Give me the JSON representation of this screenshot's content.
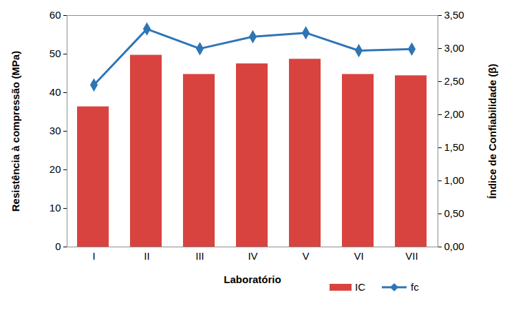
{
  "chart_data": {
    "type": "bar",
    "x_label": "Laboratório",
    "y_label": "Resistência à compressão (MPa)",
    "y2_label": "Índice de Confiabilidade (β)",
    "categories": [
      "I",
      "II",
      "III",
      "IV",
      "V",
      "VI",
      "VII"
    ],
    "series": [
      {
        "name": "IC",
        "type": "bar",
        "axis": "y2",
        "color": "#d9433f",
        "values": [
          2.12,
          2.9,
          2.61,
          2.77,
          2.84,
          2.61,
          2.59
        ]
      },
      {
        "name": "fc",
        "type": "line",
        "axis": "y",
        "color": "#2e75b6",
        "marker": "diamond",
        "values": [
          42,
          56.5,
          51.4,
          54.5,
          55.5,
          50.9,
          51.3
        ]
      }
    ],
    "ylim": [
      0,
      60
    ],
    "yticks": [
      0,
      10,
      20,
      30,
      40,
      50,
      60
    ],
    "y2lim": [
      0,
      3.5
    ],
    "y2ticks": [
      {
        "value": 0,
        "label": "0,00"
      },
      {
        "value": 0.5,
        "label": "0,50"
      },
      {
        "value": 1,
        "label": "1,00"
      },
      {
        "value": 1.5,
        "label": "1,50"
      },
      {
        "value": 2,
        "label": "2,00"
      },
      {
        "value": 2.5,
        "label": "2,50"
      },
      {
        "value": 3,
        "label": "3,00"
      },
      {
        "value": 3.5,
        "label": "3,50"
      }
    ],
    "grid": false,
    "legend": "bottom"
  }
}
